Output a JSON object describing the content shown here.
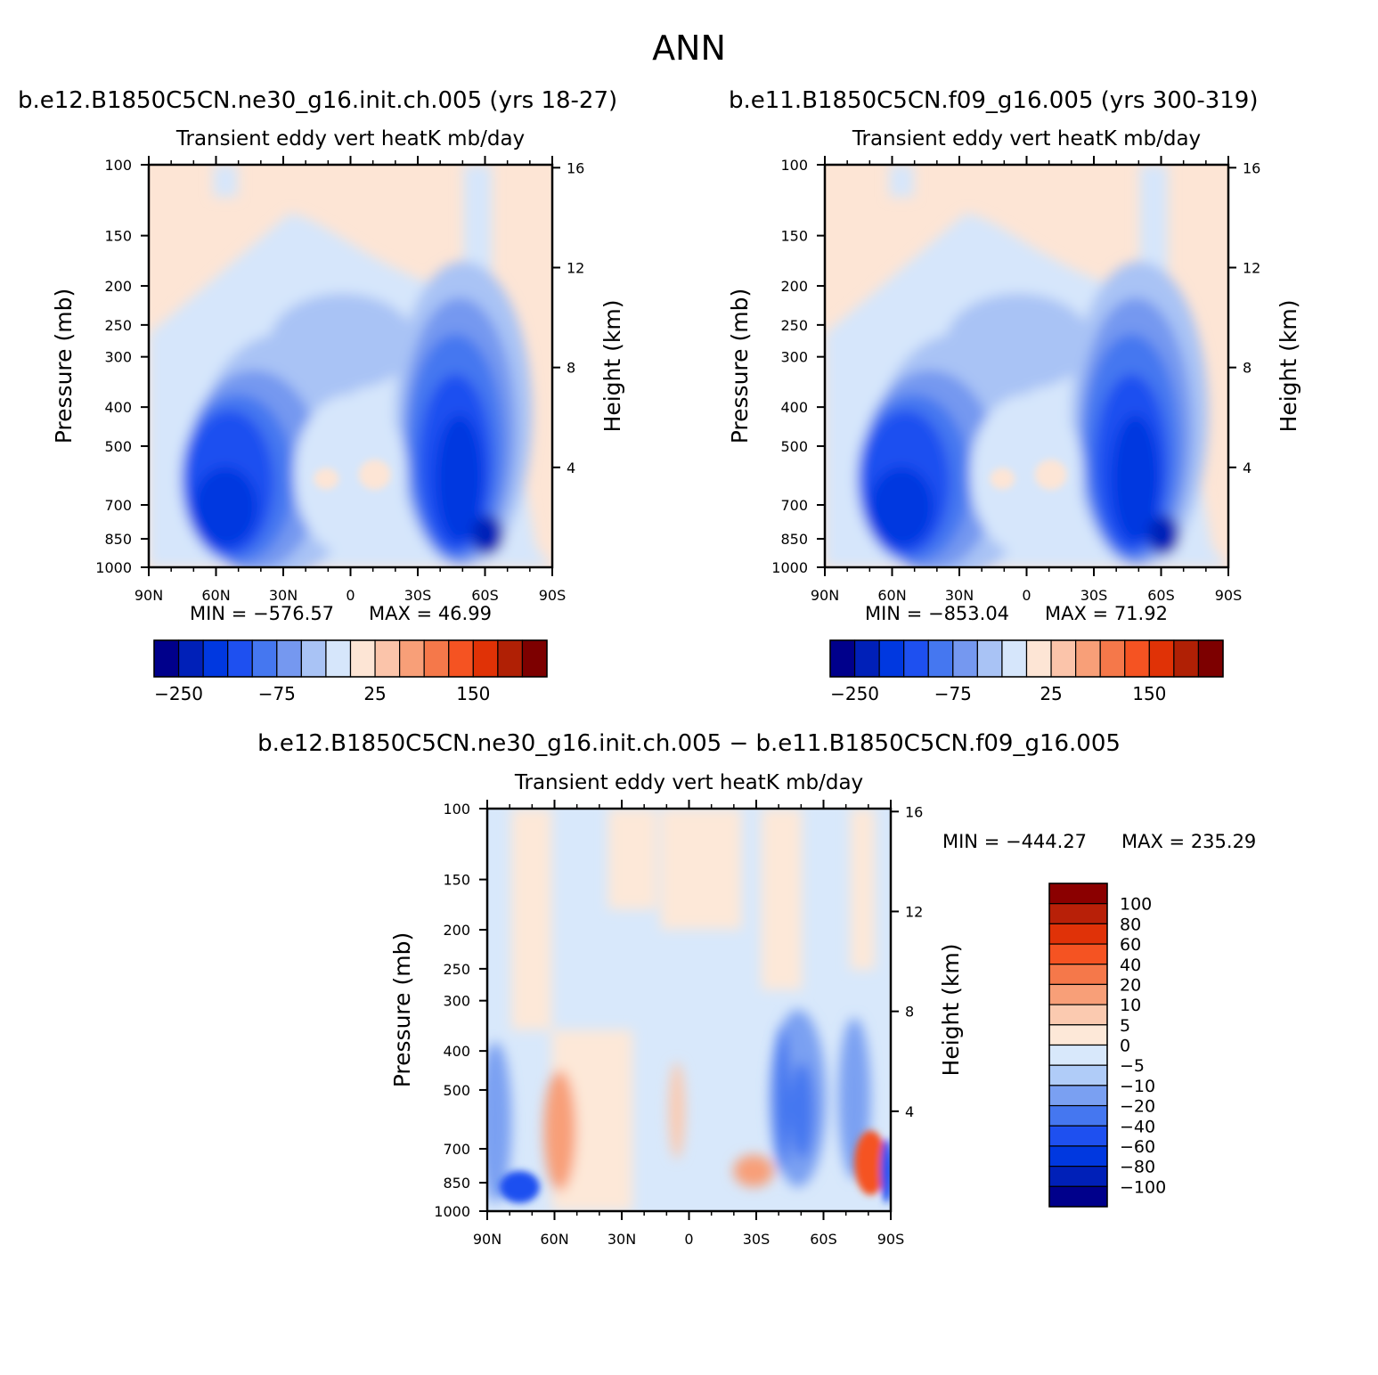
{
  "page": {
    "title": "ANN"
  },
  "chart_data": [
    {
      "type": "heatmap",
      "title": "b.e12.B1850C5CN.ne30_g16.init.ch.005 (yrs 18-27)",
      "subtitle": "Transient eddy vert heatK mb/day",
      "xlabel": "",
      "ylabel": "Pressure (mb)",
      "ylabel_right": "Height (km)",
      "x_ticks": [
        "90N",
        "60N",
        "30N",
        "0",
        "30S",
        "60S",
        "90S"
      ],
      "y_ticks": [
        100,
        150,
        200,
        250,
        300,
        400,
        500,
        700,
        850,
        1000
      ],
      "y_ticks_right": [
        16,
        12,
        8,
        4
      ],
      "ylim": [
        1000,
        100
      ],
      "y_scale": "log",
      "grid": false,
      "min_text": "MIN = −576.57",
      "max_text": "MAX = 46.99",
      "min": -576.57,
      "max": 46.99,
      "colorbar": {
        "orientation": "horizontal",
        "labels": [
          "−250",
          "−75",
          "25",
          "150"
        ],
        "colors": [
          "#00008b",
          "#0020b8",
          "#0038e0",
          "#1e50f0",
          "#4577f0",
          "#7598f0",
          "#a9c3f5",
          "#d6e6fb",
          "#fde5d5",
          "#fbc4aa",
          "#f89f78",
          "#f5784a",
          "#f55322",
          "#e03206",
          "#b02005",
          "#7d0000"
        ]
      }
    },
    {
      "type": "heatmap",
      "title": "b.e11.B1850C5CN.f09_g16.005 (yrs 300-319)",
      "subtitle": "Transient eddy vert heatK mb/day",
      "xlabel": "",
      "ylabel": "Pressure (mb)",
      "ylabel_right": "Height (km)",
      "x_ticks": [
        "90N",
        "60N",
        "30N",
        "0",
        "30S",
        "60S",
        "90S"
      ],
      "y_ticks": [
        100,
        150,
        200,
        250,
        300,
        400,
        500,
        700,
        850,
        1000
      ],
      "y_ticks_right": [
        16,
        12,
        8,
        4
      ],
      "ylim": [
        1000,
        100
      ],
      "y_scale": "log",
      "grid": false,
      "min_text": "MIN = −853.04",
      "max_text": "MAX = 71.92",
      "min": -853.04,
      "max": 71.92,
      "colorbar": {
        "orientation": "horizontal",
        "labels": [
          "−250",
          "−75",
          "25",
          "150"
        ],
        "colors": [
          "#00008b",
          "#0020b8",
          "#0038e0",
          "#1e50f0",
          "#4577f0",
          "#7598f0",
          "#a9c3f5",
          "#d6e6fb",
          "#fde5d5",
          "#fbc4aa",
          "#f89f78",
          "#f5784a",
          "#f55322",
          "#e03206",
          "#b02005",
          "#7d0000"
        ]
      }
    },
    {
      "type": "heatmap",
      "title": "b.e12.B1850C5CN.ne30_g16.init.ch.005 − b.e11.B1850C5CN.f09_g16.005",
      "subtitle": "Transient eddy vert heatK mb/day",
      "xlabel": "",
      "ylabel": "Pressure (mb)",
      "ylabel_right": "Height (km)",
      "x_ticks": [
        "90N",
        "60N",
        "30N",
        "0",
        "30S",
        "60S",
        "90S"
      ],
      "y_ticks": [
        100,
        150,
        200,
        250,
        300,
        400,
        500,
        700,
        850,
        1000
      ],
      "y_ticks_right": [
        16,
        12,
        8,
        4
      ],
      "ylim": [
        1000,
        100
      ],
      "y_scale": "log",
      "grid": false,
      "min_text": "MIN = −444.27",
      "max_text": "MAX = 235.29",
      "min": -444.27,
      "max": 235.29,
      "colorbar": {
        "orientation": "vertical",
        "labels": [
          "100",
          "80",
          "60",
          "40",
          "20",
          "10",
          "5",
          "0",
          "−5",
          "−10",
          "−20",
          "−40",
          "−60",
          "−80",
          "−100"
        ],
        "colors": [
          "#8b0000",
          "#b82008",
          "#e03208",
          "#f55322",
          "#f5784a",
          "#f89f78",
          "#fbcab0",
          "#fde8d8",
          "#d8e8fb",
          "#b0ccf8",
          "#7aa0f2",
          "#4577f0",
          "#1e50f0",
          "#0038e0",
          "#0020b8",
          "#00008b"
        ]
      }
    }
  ]
}
